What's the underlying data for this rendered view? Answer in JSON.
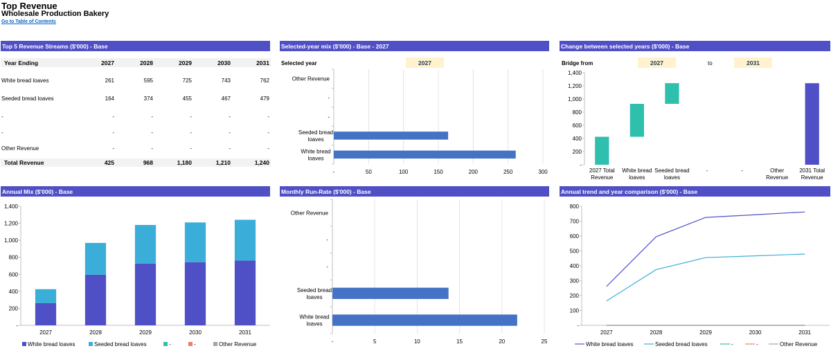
{
  "header": {
    "title": "Top Revenue",
    "subtitle": "Wholesale Production Bakery",
    "toc_link": "Go to Table of Contents"
  },
  "sections": {
    "top5": "Top 5 Revenue Streams ($'000) - Base",
    "mix_year": "Selected-year mix ($'000) - Base - 2027",
    "bridge": "Change between selected years ($'000) - Base",
    "annual_mix": "Annual Mix ($'000) - Base",
    "monthly": "Monthly Run-Rate ($'000) - Base",
    "trend": "Annual trend and year comparison ($'000) - Base"
  },
  "table": {
    "header_label": "Year Ending",
    "years": [
      "2027",
      "2028",
      "2029",
      "2030",
      "2031"
    ],
    "rows": [
      {
        "label": "White bread loaves",
        "values": [
          "261",
          "595",
          "725",
          "743",
          "762"
        ]
      },
      {
        "label": "Seeded bread loaves",
        "values": [
          "164",
          "374",
          "455",
          "467",
          "479"
        ]
      },
      {
        "label": "-",
        "values": [
          "-",
          "-",
          "-",
          "-",
          "-"
        ]
      },
      {
        "label": "-",
        "values": [
          "-",
          "-",
          "-",
          "-",
          "-"
        ]
      },
      {
        "label": "Other Revenue",
        "values": [
          "-",
          "-",
          "-",
          "-",
          "-"
        ]
      }
    ],
    "total": {
      "label": "Total Revenue",
      "values": [
        "425",
        "968",
        "1,180",
        "1,210",
        "1,240"
      ]
    }
  },
  "selectors": {
    "selected_year_label": "Selected year",
    "selected_year_value": "2027",
    "bridge_from_label": "Bridge from",
    "bridge_from_value": "2027",
    "to_label": "to",
    "bridge_to_value": "2031"
  },
  "colors": {
    "header_bar": "#4f4fc6",
    "white_bread": "#4f4fc6",
    "seeded_bread": "#3aaed8",
    "stream3": "#2ebfad",
    "stream4": "#f07c6c",
    "other": "#a5a5a5",
    "hbar": "#4472c4",
    "bridge_change": "#2ebfad",
    "bridge_total": "#4f4fc6",
    "selector_fill": "#fff2cc"
  },
  "chart_data": [
    {
      "id": "mix_year",
      "type": "bar",
      "orientation": "horizontal",
      "categories": [
        "Other Revenue",
        "-",
        "-",
        "Seeded bread loaves",
        "White bread loaves"
      ],
      "values": [
        0,
        0,
        0,
        164,
        261
      ],
      "xlim": [
        0,
        300
      ],
      "xticks": [
        "-",
        "50",
        "100",
        "150",
        "200",
        "250",
        "300"
      ],
      "grid": true
    },
    {
      "id": "bridge",
      "type": "waterfall",
      "categories": [
        "2027 Total Revenue",
        "White bread loaves",
        "Seeded bread loaves",
        "-",
        "-",
        "Other Revenue",
        "2031 Total Revenue"
      ],
      "values": [
        425,
        501,
        315,
        0,
        0,
        0,
        1240
      ],
      "kinds": [
        "total",
        "change",
        "change",
        "change",
        "change",
        "change",
        "total"
      ],
      "ylim": [
        0,
        1400
      ],
      "yticks": [
        "-",
        "200",
        "400",
        "600",
        "800",
        "1,000",
        "1,200",
        "1,400"
      ],
      "grid": false
    },
    {
      "id": "annual_mix",
      "type": "bar",
      "stacked": true,
      "categories": [
        "2027",
        "2028",
        "2029",
        "2030",
        "2031"
      ],
      "series": [
        {
          "name": "White bread loaves",
          "values": [
            261,
            595,
            725,
            743,
            762
          ]
        },
        {
          "name": "Seeded bread loaves",
          "values": [
            164,
            374,
            455,
            467,
            479
          ]
        },
        {
          "name": "-",
          "values": [
            0,
            0,
            0,
            0,
            0
          ]
        },
        {
          "name": "-",
          "values": [
            0,
            0,
            0,
            0,
            0
          ]
        },
        {
          "name": "Other Revenue",
          "values": [
            0,
            0,
            0,
            0,
            0
          ]
        }
      ],
      "ylim": [
        0,
        1400
      ],
      "yticks": [
        "-",
        "200",
        "400",
        "600",
        "800",
        "1,000",
        "1,200",
        "1,400"
      ],
      "legend": "bottom",
      "grid": false
    },
    {
      "id": "monthly",
      "type": "bar",
      "orientation": "horizontal",
      "categories": [
        "Other Revenue",
        "-",
        "-",
        "Seeded bread loaves",
        "White bread loaves"
      ],
      "values": [
        0,
        0,
        0,
        13.7,
        21.8
      ],
      "xlim": [
        0,
        25
      ],
      "xticks": [
        "-",
        "5",
        "10",
        "15",
        "20",
        "25"
      ],
      "grid": true
    },
    {
      "id": "trend",
      "type": "line",
      "x": [
        "2027",
        "2028",
        "2029",
        "2030",
        "2031"
      ],
      "series": [
        {
          "name": "White bread loaves",
          "values": [
            261,
            595,
            725,
            743,
            762
          ]
        },
        {
          "name": "Seeded bread loaves",
          "values": [
            164,
            374,
            455,
            467,
            479
          ]
        },
        {
          "name": "-",
          "values": [
            0,
            0,
            0,
            0,
            0
          ]
        },
        {
          "name": "-",
          "values": [
            0,
            0,
            0,
            0,
            0
          ]
        },
        {
          "name": "Other Revenue",
          "values": [
            0,
            0,
            0,
            0,
            0
          ]
        }
      ],
      "ylim": [
        0,
        800
      ],
      "yticks": [
        "-",
        "100",
        "200",
        "300",
        "400",
        "500",
        "600",
        "700",
        "800"
      ],
      "legend": "bottom",
      "grid": false
    }
  ]
}
